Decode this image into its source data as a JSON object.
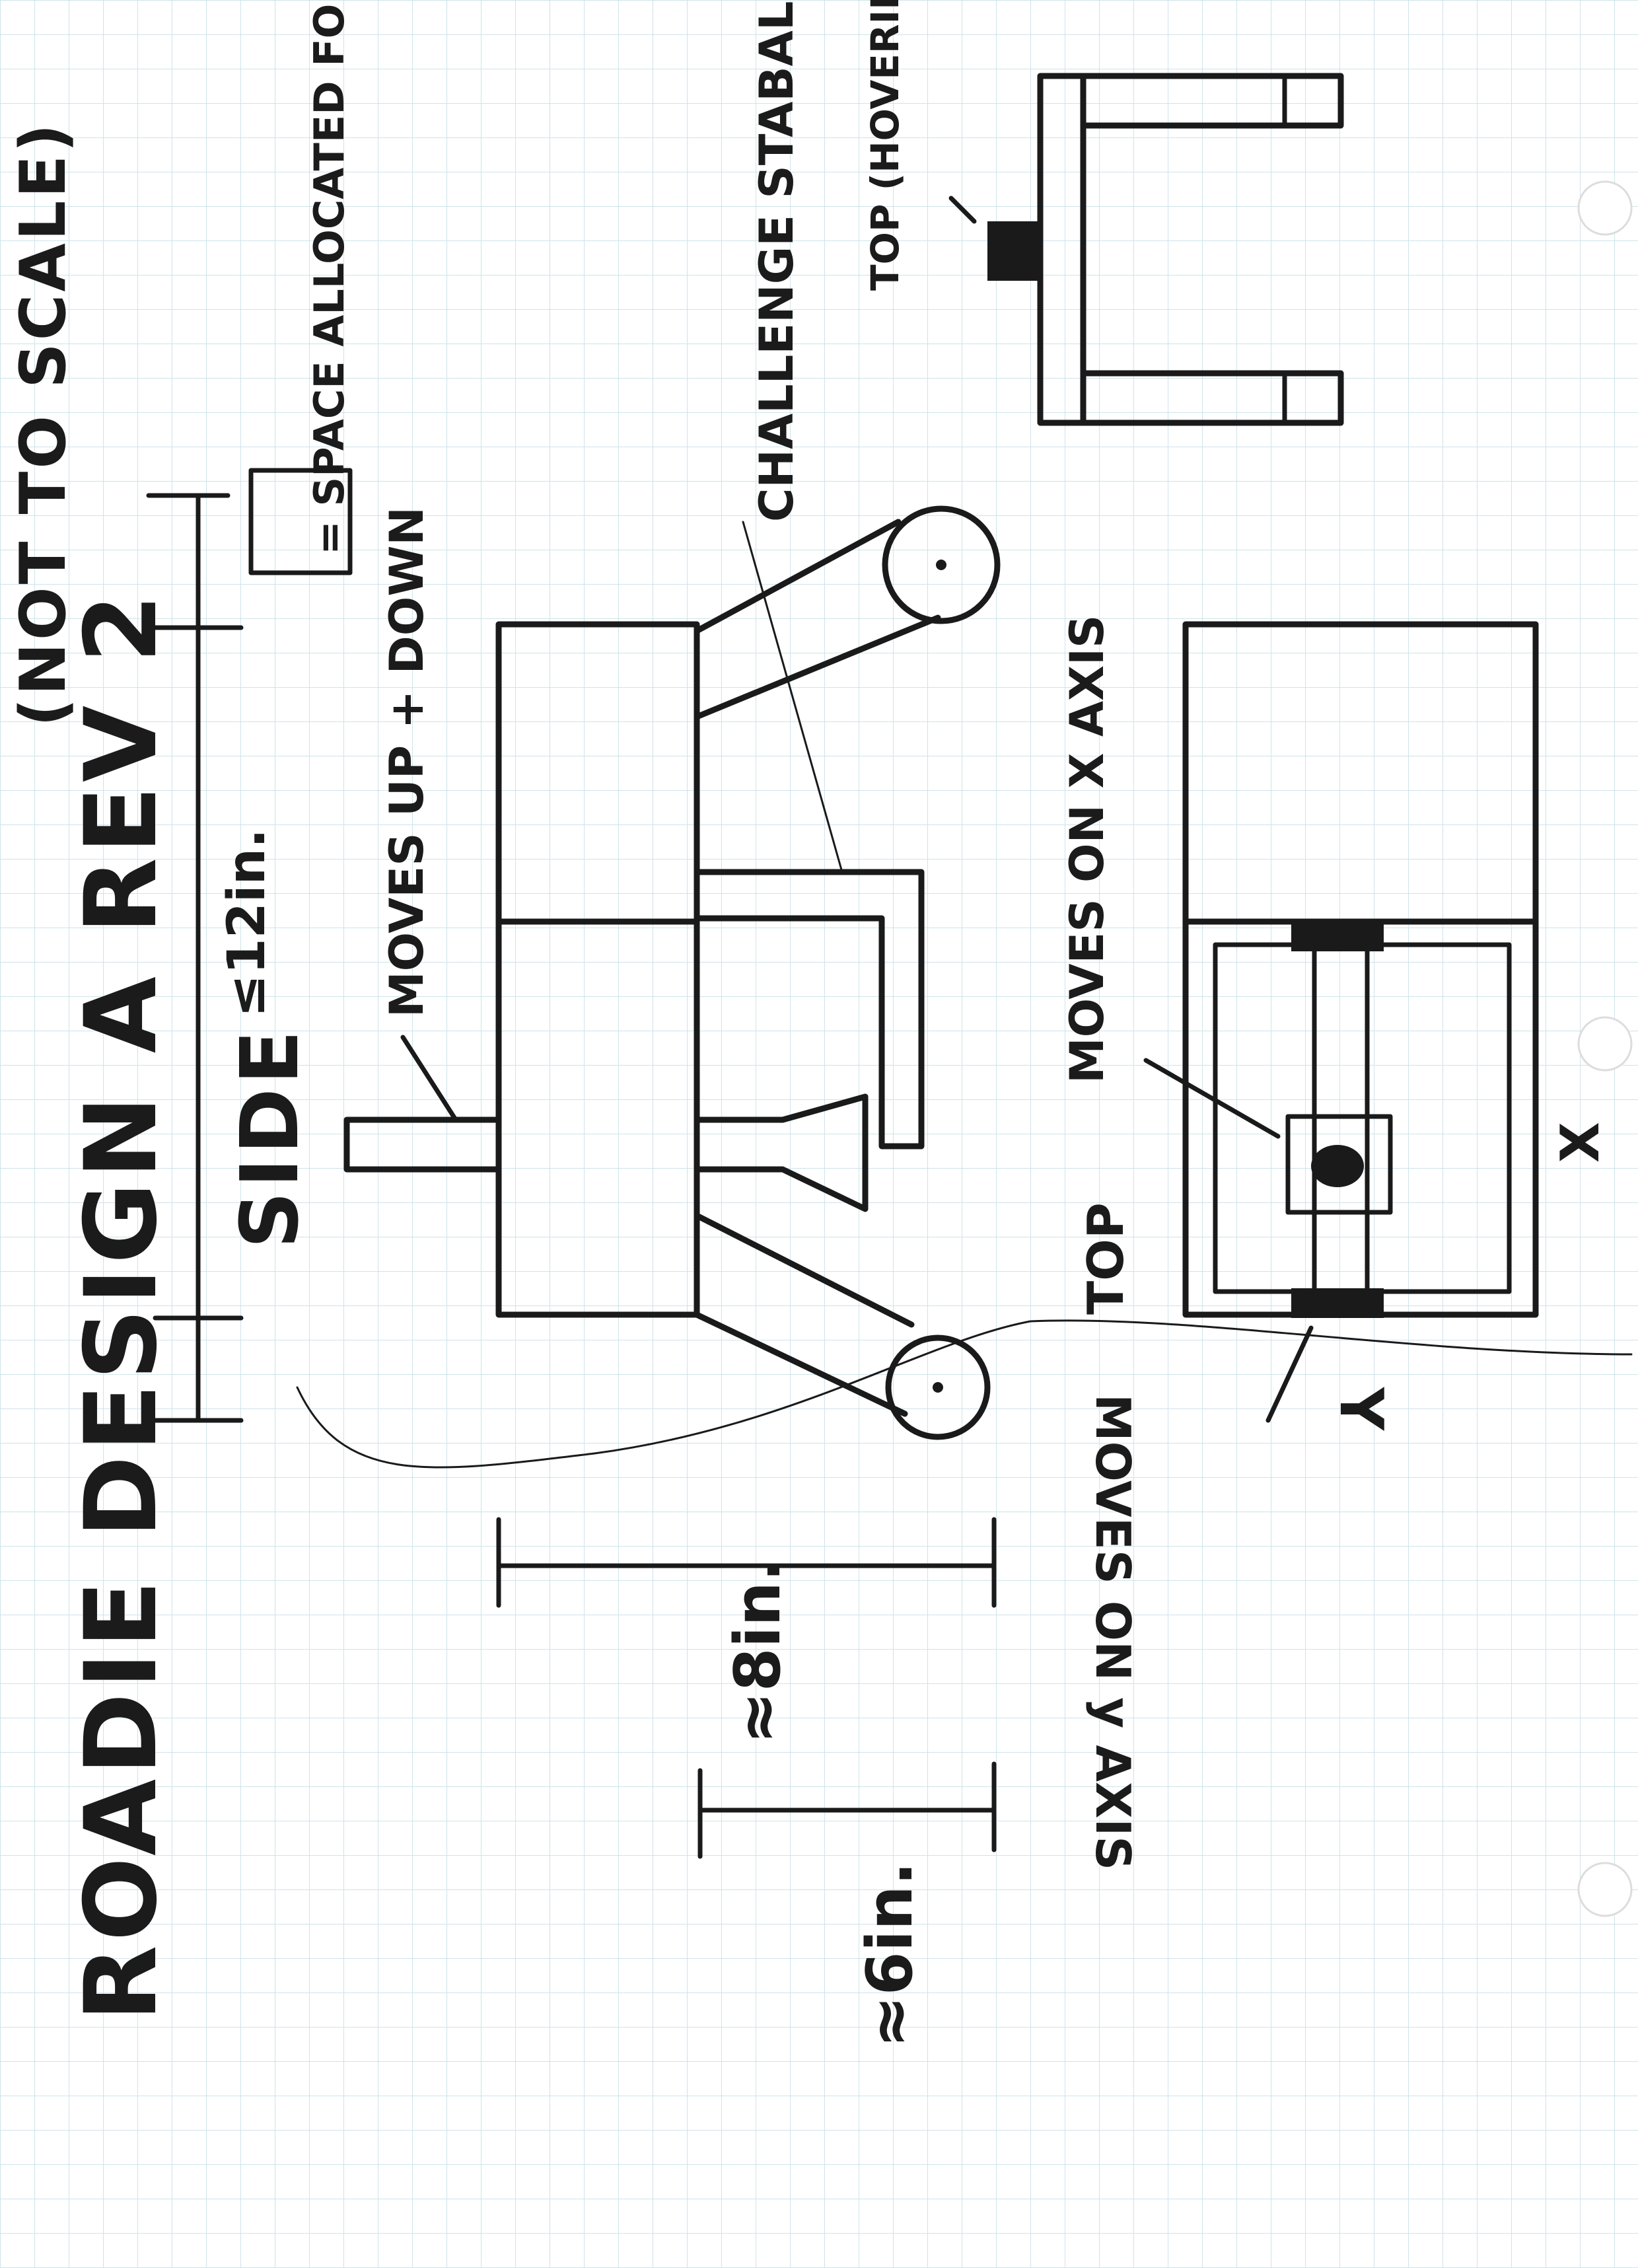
{
  "title": "ROADIE DESIGN A REV 2",
  "scale_note": "(NOT TO SCALE)",
  "views": {
    "side_label": "SIDE",
    "top_label": "TOP",
    "top_grabber_label": "TOP (HOVERING) GRABBERS-CAMPUS TO"
  },
  "legend": {
    "text": "= SPACE ALLOCATED FOR HARDWARE"
  },
  "dimensions": {
    "height_text": "≤12in.",
    "length_text": "≈8in.",
    "width_text": "≈6in."
  },
  "annotations": {
    "moves_up_down": "MOVES UP + DOWN",
    "challenge_arm": "CHALLENGE STABALIZING ARM",
    "moves_x_axis": "MOVES ON X AXIS",
    "moves_y_axis": "MOVES ON y AXIS",
    "x_mark": "X",
    "y_mark": "Y"
  },
  "colors": {
    "ink": "#1a1a1a",
    "grid": "#cfe3ea",
    "paper": "#ffffff"
  }
}
